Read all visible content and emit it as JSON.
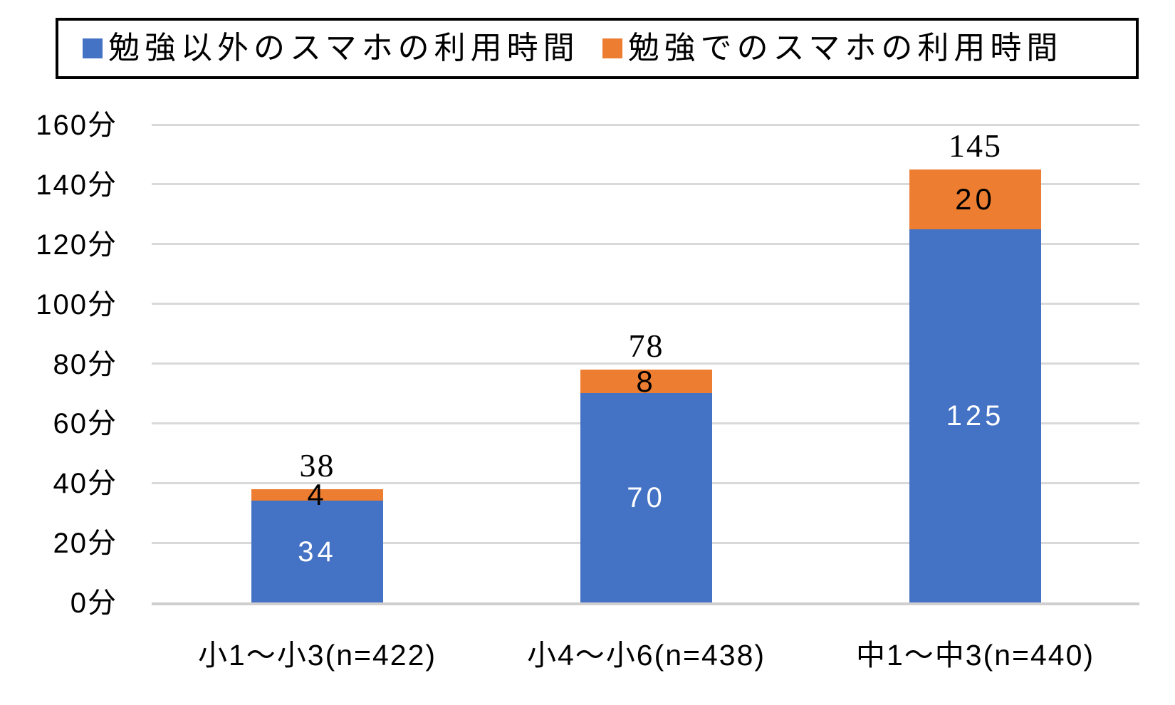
{
  "chart_data": {
    "type": "bar",
    "stacked": true,
    "categories": [
      "小1〜小3(n=422)",
      "小4〜小6(n=438)",
      "中1〜中3(n=440)"
    ],
    "series": [
      {
        "name": "勉強以外のスマホの利用時間",
        "color": "#4472C4",
        "values": [
          34,
          70,
          125
        ],
        "label_color": "#FFFFFF"
      },
      {
        "name": "勉強でのスマホの利用時間",
        "color": "#ED7D31",
        "values": [
          4,
          8,
          20
        ],
        "label_color": "#000000"
      }
    ],
    "totals": [
      38,
      78,
      145
    ],
    "y_axis": {
      "unit": "分",
      "min": 0,
      "max": 160,
      "step": 20,
      "tick_labels": [
        "0分",
        "20分",
        "40分",
        "60分",
        "80分",
        "100分",
        "120分",
        "140分",
        "160分"
      ]
    },
    "legend": {
      "position": "top",
      "border": true
    },
    "grid": true,
    "gridline_color": "#D9D9D9",
    "axis_line_color": "#D0CECE",
    "background_color": "#FFFFFF"
  }
}
